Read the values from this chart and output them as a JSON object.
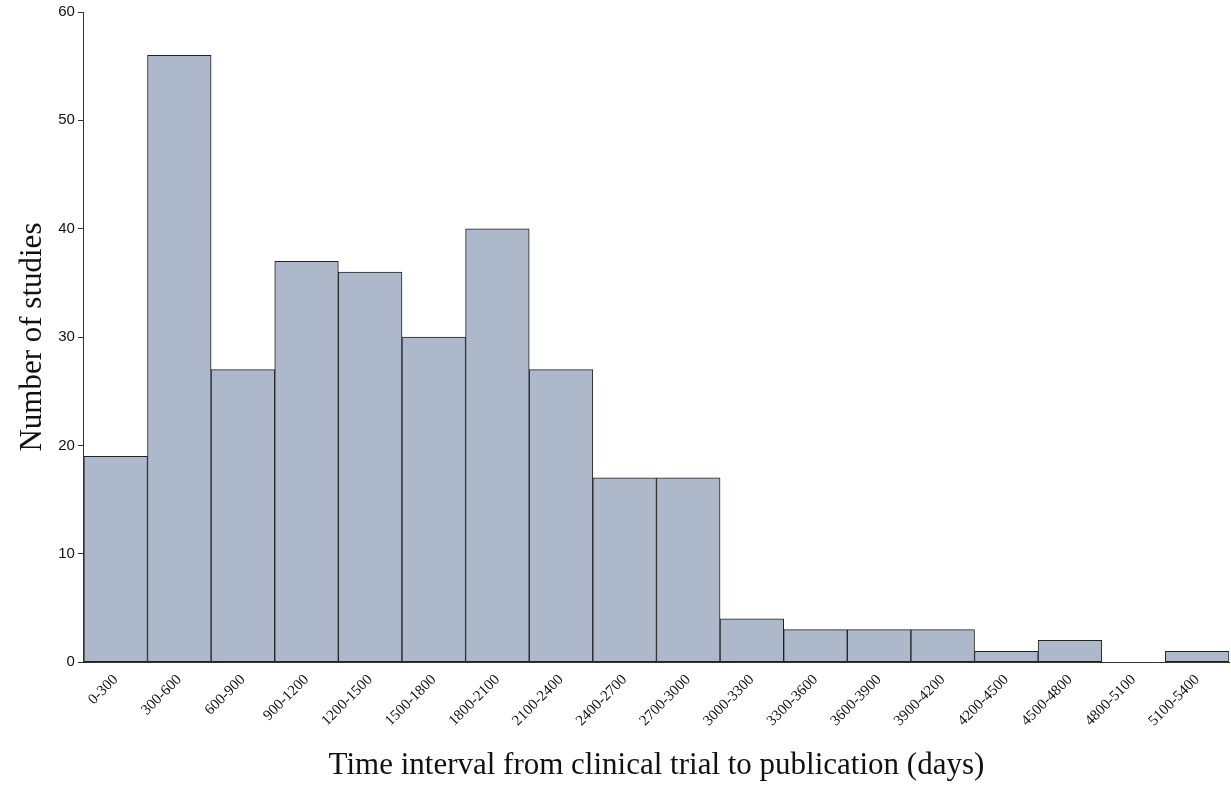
{
  "chart_data": {
    "type": "bar",
    "xlabel": "Time interval from clinical trial to publication (days)",
    "ylabel": "Number of studies",
    "categories": [
      "0-300",
      "300-600",
      "600-900",
      "900-1200",
      "1200-1500",
      "1500-1800",
      "1800-2100",
      "2100-2400",
      "2400-2700",
      "2700-3000",
      "3000-3300",
      "3300-3600",
      "3600-3900",
      "3900-4200",
      "4200-4500",
      "4500-4800",
      "4800-5100",
      "5100-5400"
    ],
    "values": [
      19,
      56,
      27,
      37,
      36,
      30,
      40,
      27,
      17,
      17,
      4,
      3,
      3,
      3,
      1,
      2,
      0,
      1
    ],
    "color": "#adb9cb",
    "ylim": [
      0,
      60
    ],
    "yticks": [
      0,
      10,
      20,
      30,
      40,
      50,
      60
    ],
    "grid": false,
    "legend": false
  }
}
